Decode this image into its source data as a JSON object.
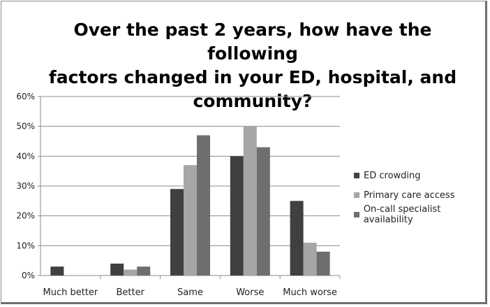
{
  "chart_data": {
    "type": "bar",
    "title_lines": [
      "Over the past 2 years, how have the following",
      "factors changed in your ED, hospital, and",
      "community?"
    ],
    "xlabel": "",
    "ylabel": "",
    "categories": [
      "Much better",
      "Better",
      "Same",
      "Worse",
      "Much worse"
    ],
    "ylim": [
      0,
      60
    ],
    "y_ticks": [
      "0%",
      "10%",
      "20%",
      "30%",
      "40%",
      "50%",
      "60%"
    ],
    "series": [
      {
        "name": "ED crowding",
        "color": "#404040",
        "values": [
          3,
          4,
          29,
          40,
          25
        ]
      },
      {
        "name": "Primary care access",
        "color": "#a6a6a6",
        "values": [
          0,
          2,
          37,
          50,
          11
        ]
      },
      {
        "name": "On-call specialist availability",
        "color": "#6e6e6e",
        "values": [
          0,
          3,
          47,
          43,
          8
        ]
      }
    ],
    "grid": true,
    "legend_position": "right"
  }
}
